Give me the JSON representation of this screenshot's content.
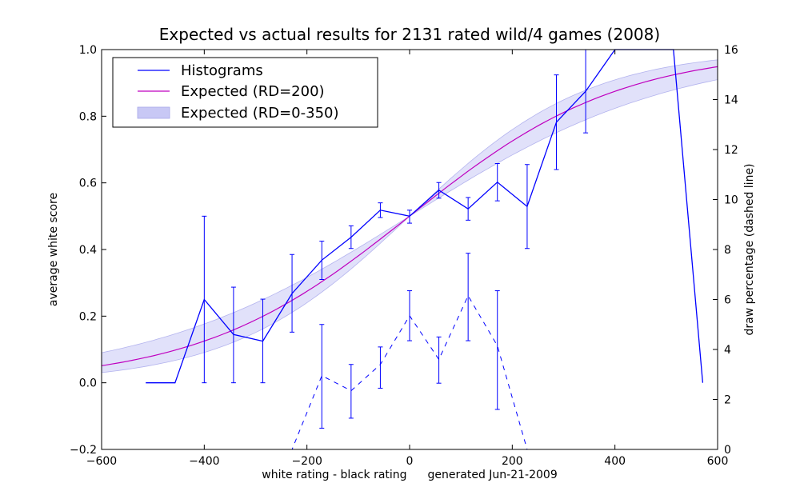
{
  "chart_data": {
    "type": "line",
    "title": "Expected vs actual results for 2131 rated wild/4 games (2008)",
    "xlabel": "white rating - black rating",
    "xlabel_note": "generated Jun-21-2009",
    "ylabel": "average white score",
    "ylabel_right": "draw percentage (dashed line)",
    "xlim": [
      -600,
      600
    ],
    "ylim": [
      -0.2,
      1.0
    ],
    "ylim_right": [
      0,
      16
    ],
    "xticks": [
      -600,
      -400,
      -200,
      0,
      200,
      400,
      600
    ],
    "xtick_labels": [
      "−600",
      "−400",
      "−200",
      "0",
      "200",
      "400",
      "600"
    ],
    "yticks": [
      -0.2,
      0.0,
      0.2,
      0.4,
      0.6,
      0.8,
      1.0
    ],
    "ytick_labels": [
      "−0.2",
      "0.0",
      "0.2",
      "0.4",
      "0.6",
      "0.8",
      "1.0"
    ],
    "yticks_right": [
      0,
      2,
      4,
      6,
      8,
      10,
      12,
      14,
      16
    ],
    "ytick_labels_right": [
      "0",
      "2",
      "4",
      "6",
      "8",
      "10",
      "12",
      "14",
      "16"
    ],
    "grid": false,
    "legend_position": "top-left",
    "legend": [
      {
        "label": "Histograms",
        "kind": "line",
        "color": "#0000ff"
      },
      {
        "label": "Expected (RD=200)",
        "kind": "line",
        "color": "#bf00bf"
      },
      {
        "label": "Expected (RD=0-350)",
        "kind": "band",
        "color": "#c8c8f5"
      }
    ],
    "histogram": {
      "color": "#0000ff",
      "x": [
        -514,
        -457,
        -400,
        -343,
        -286,
        -229,
        -171,
        -114,
        -57,
        0,
        57,
        114,
        171,
        229,
        286,
        343,
        400,
        457,
        514,
        571
      ],
      "y": [
        0.0,
        0.0,
        0.25,
        0.145,
        0.125,
        0.268,
        0.368,
        0.437,
        0.518,
        0.5,
        0.578,
        0.522,
        0.602,
        0.529,
        0.782,
        0.875,
        1.0,
        1.0,
        1.0,
        0.0
      ],
      "errors": [
        {
          "x": -400,
          "low": 0.0,
          "high": 0.5
        },
        {
          "x": -343,
          "low": 0.0,
          "high": 0.287
        },
        {
          "x": -286,
          "low": 0.0,
          "high": 0.251
        },
        {
          "x": -229,
          "low": 0.152,
          "high": 0.385
        },
        {
          "x": -171,
          "low": 0.31,
          "high": 0.425
        },
        {
          "x": -114,
          "low": 0.403,
          "high": 0.471
        },
        {
          "x": -57,
          "low": 0.496,
          "high": 0.54
        },
        {
          "x": 0,
          "low": 0.479,
          "high": 0.518
        },
        {
          "x": 57,
          "low": 0.554,
          "high": 0.601
        },
        {
          "x": 114,
          "low": 0.488,
          "high": 0.556
        },
        {
          "x": 171,
          "low": 0.546,
          "high": 0.658
        },
        {
          "x": 229,
          "low": 0.403,
          "high": 0.655
        },
        {
          "x": 286,
          "low": 0.64,
          "high": 0.924
        },
        {
          "x": 343,
          "low": 0.75,
          "high": 1.0
        }
      ]
    },
    "draw_percentage": {
      "color": "#0000ff",
      "style": "dashed",
      "x": [
        -571,
        -514,
        -457,
        -400,
        -343,
        -286,
        -229,
        -171,
        -114,
        -57,
        0,
        57,
        114,
        171,
        229,
        286,
        343,
        400,
        457,
        514,
        571
      ],
      "y": [
        0,
        0,
        0,
        0,
        0,
        0,
        0,
        2.95,
        2.35,
        3.4,
        5.35,
        3.6,
        6.15,
        4.15,
        0,
        0,
        0,
        0,
        0,
        0,
        0
      ],
      "errors": [
        {
          "x": -171,
          "low": 0.85,
          "high": 5.0
        },
        {
          "x": -114,
          "low": 1.25,
          "high": 3.4
        },
        {
          "x": -57,
          "low": 2.45,
          "high": 4.1
        },
        {
          "x": 0,
          "low": 4.35,
          "high": 6.35
        },
        {
          "x": 57,
          "low": 2.65,
          "high": 4.5
        },
        {
          "x": 114,
          "low": 4.35,
          "high": 7.85
        },
        {
          "x": 171,
          "low": 1.6,
          "high": 6.35
        }
      ]
    },
    "expected": {
      "color": "#bf00bf",
      "rd": 200,
      "band_color": "#c8c8f5",
      "band_rd": [
        0,
        350
      ]
    }
  }
}
